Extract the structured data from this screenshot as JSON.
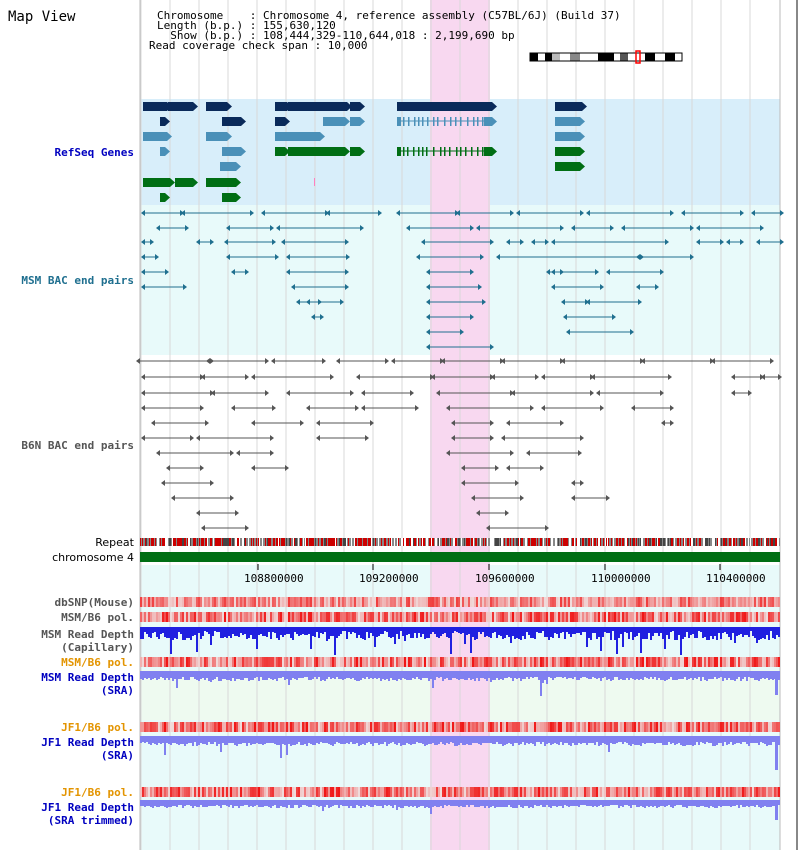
{
  "title": "Map View",
  "info": {
    "chromosome": "Chromosome    : Chromosome 4, reference assembly (C57BL/6J) (Build 37)",
    "length": "Length (b.p.) : 155,630,120",
    "show": "  Show (b.p.) : 108,444,329-110,644,018 : 2,199,690 bp",
    "coverage": "Read coverage check span : 10,000"
  },
  "tracks": {
    "refseq": "RefSeq Genes",
    "msm_bac": "MSM BAC end pairs",
    "b6n_bac": "B6N BAC end pairs",
    "repeat": "Repeat",
    "chromosome": "chromosome 4",
    "dbsnp": "dbSNP(Mouse)",
    "msm_b6_pol_1": "MSM/B6 pol.",
    "msm_depth_cap": "MSM Read Depth\n(Capillary)",
    "msm_b6_pol_2": "MSM/B6 pol.",
    "msm_depth_sra": "MSM Read Depth\n(SRA)",
    "jf1_b6_pol_1": "JF1/B6 pol.",
    "jf1_depth_sra": "JF1 Read Depth\n(SRA)",
    "jf1_b6_pol_2": "JF1/B6 pol.",
    "jf1_depth_trim": "JF1 Read Depth\n(SRA trimmed)"
  },
  "axis_ticks": [
    "108800000",
    "109200000",
    "109600000",
    "110000000",
    "110400000"
  ],
  "colors": {
    "highlight": "#f8d8f0",
    "refseq_bg": "#d8eefa",
    "bac_bg": "#e8fafa",
    "sra_bg": "#eefaf0",
    "gene_dark": "#0a2a5a",
    "gene_mid": "#4a90b8",
    "gene_green": "#006e14",
    "msm_line": "#1f6f8f",
    "b6n_line": "#555555",
    "repeat_red": "#cc0000",
    "chromosome_green": "#006e14",
    "depth_blue": "#2020e0",
    "depth_light": "#8080f0"
  }
}
